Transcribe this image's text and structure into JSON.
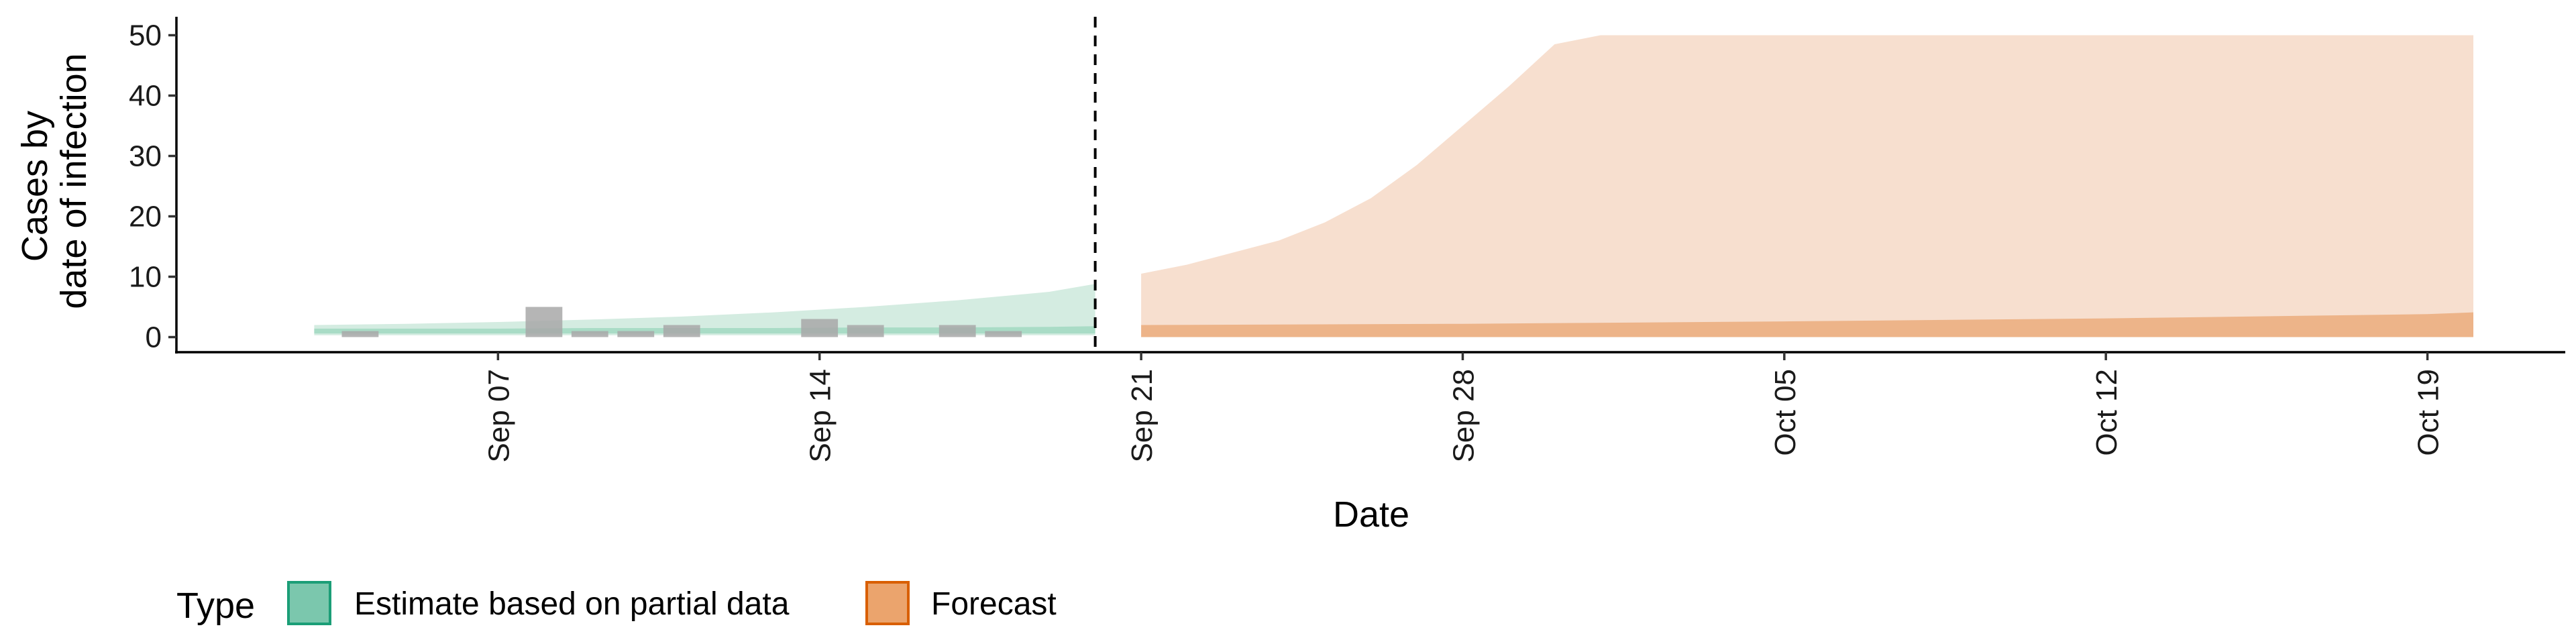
{
  "chart_data": {
    "type": "area",
    "title": "",
    "xlabel": "Date",
    "ylabel_lines": [
      "Cases by",
      "date of infection"
    ],
    "x_axis": {
      "min": "2020-08-31",
      "max": "2020-10-22",
      "ticks": [
        {
          "date": "2020-09-07",
          "label": "Sep 07"
        },
        {
          "date": "2020-09-14",
          "label": "Sep 14"
        },
        {
          "date": "2020-09-21",
          "label": "Sep 21"
        },
        {
          "date": "2020-09-28",
          "label": "Sep 28"
        },
        {
          "date": "2020-10-05",
          "label": "Oct 05"
        },
        {
          "date": "2020-10-12",
          "label": "Oct 12"
        },
        {
          "date": "2020-10-19",
          "label": "Oct 19"
        }
      ]
    },
    "y_axis": {
      "min": -2.5,
      "max": 52.5,
      "ticks": [
        0,
        10,
        20,
        30,
        40,
        50
      ]
    },
    "vline_date": "2020-09-20",
    "grid": false,
    "legend": {
      "position": "bottom-left",
      "title": "Type",
      "entries": [
        {
          "label": "Estimate based on partial data",
          "fill": "#7bc7ad",
          "stroke": "#1b9e77"
        },
        {
          "label": "Forecast",
          "fill": "#eba46d",
          "stroke": "#d95f02"
        }
      ]
    },
    "colors": {
      "estimate_outer": "#d4ece1",
      "estimate_inner": "#a9dcc6",
      "forecast_outer": "#f7dfcf",
      "forecast_inner": "#edb489",
      "observed_bar": "#a8a8a8"
    },
    "observed_cases": [
      {
        "date": "2020-09-03",
        "value": 0
      },
      {
        "date": "2020-09-04",
        "value": 1
      },
      {
        "date": "2020-09-05",
        "value": 0
      },
      {
        "date": "2020-09-06",
        "value": 0
      },
      {
        "date": "2020-09-07",
        "value": 0
      },
      {
        "date": "2020-09-08",
        "value": 5
      },
      {
        "date": "2020-09-09",
        "value": 1
      },
      {
        "date": "2020-09-10",
        "value": 1
      },
      {
        "date": "2020-09-11",
        "value": 2
      },
      {
        "date": "2020-09-12",
        "value": 0
      },
      {
        "date": "2020-09-13",
        "value": 0
      },
      {
        "date": "2020-09-14",
        "value": 3
      },
      {
        "date": "2020-09-15",
        "value": 2
      },
      {
        "date": "2020-09-16",
        "value": 0
      },
      {
        "date": "2020-09-17",
        "value": 2
      },
      {
        "date": "2020-09-18",
        "value": 1
      },
      {
        "date": "2020-09-19",
        "value": 0
      }
    ],
    "series": [
      {
        "type": "Estimate based on partial data",
        "outer_band": {
          "dates": [
            "2020-09-03",
            "2020-09-05",
            "2020-09-07",
            "2020-09-09",
            "2020-09-11",
            "2020-09-13",
            "2020-09-15",
            "2020-09-17",
            "2020-09-19",
            "2020-09-20"
          ],
          "lower": [
            0.3,
            0.3,
            0.3,
            0.3,
            0.3,
            0.3,
            0.3,
            0.3,
            0.3,
            0.3
          ],
          "upper": [
            2.0,
            2.2,
            2.5,
            2.9,
            3.4,
            4.1,
            5.0,
            6.1,
            7.5,
            8.8
          ]
        },
        "inner_band": {
          "dates": [
            "2020-09-03",
            "2020-09-05",
            "2020-09-07",
            "2020-09-09",
            "2020-09-11",
            "2020-09-13",
            "2020-09-15",
            "2020-09-17",
            "2020-09-19",
            "2020-09-20"
          ],
          "lower": [
            0.6,
            0.6,
            0.6,
            0.6,
            0.6,
            0.6,
            0.6,
            0.6,
            0.6,
            0.6
          ],
          "upper": [
            1.4,
            1.4,
            1.4,
            1.5,
            1.5,
            1.5,
            1.6,
            1.6,
            1.7,
            1.8
          ]
        }
      },
      {
        "type": "Forecast",
        "outer_band": {
          "dates": [
            "2020-09-21",
            "2020-09-22",
            "2020-09-23",
            "2020-09-24",
            "2020-09-25",
            "2020-09-26",
            "2020-09-27",
            "2020-09-28",
            "2020-09-29",
            "2020-09-30",
            "2020-10-01",
            "2020-10-19",
            "2020-10-20"
          ],
          "lower": [
            0,
            0,
            0,
            0,
            0,
            0,
            0,
            0,
            0,
            0,
            0,
            0,
            0
          ],
          "upper": [
            10.5,
            12.0,
            14.0,
            16.0,
            19.0,
            23.0,
            28.5,
            35.0,
            41.5,
            48.5,
            50,
            50,
            50
          ]
        },
        "inner_band": {
          "dates": [
            "2020-09-21",
            "2020-09-28",
            "2020-10-05",
            "2020-10-12",
            "2020-10-19",
            "2020-10-20"
          ],
          "lower": [
            0,
            0,
            0,
            0,
            0,
            0
          ],
          "upper": [
            2.0,
            2.2,
            2.6,
            3.1,
            3.8,
            4.1
          ]
        }
      }
    ]
  }
}
